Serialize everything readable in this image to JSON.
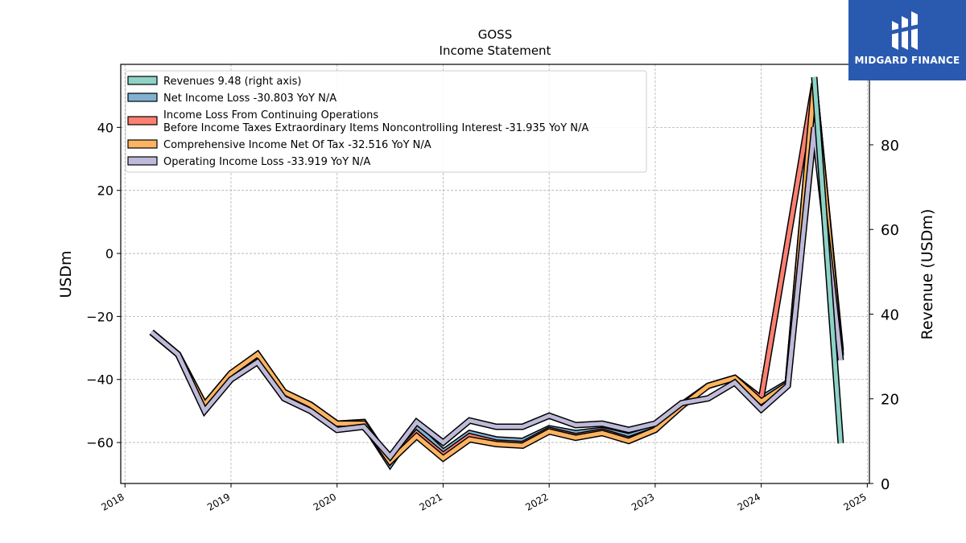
{
  "title": "GOSS",
  "subtitle": "Income Statement",
  "logo_text": "MIDGARD FINANCE",
  "chart_data": {
    "type": "line",
    "xlabel": "",
    "ylabel": "USDm",
    "ylabel_right": "Revenue (USDm)",
    "xlim": [
      2017.96,
      2025.02
    ],
    "ylim": [
      -73,
      60
    ],
    "ylim_right": [
      0,
      99
    ],
    "x_ticks": [
      "2018",
      "2019",
      "2020",
      "2021",
      "2022",
      "2023",
      "2024",
      "2025"
    ],
    "y_ticks": [
      -60,
      -40,
      -20,
      0,
      20,
      40
    ],
    "y_ticks_right": [
      0,
      20,
      40,
      60,
      80
    ],
    "grid": true,
    "legend_position": "top-left",
    "series": [
      {
        "name": "Revenues  9.48 (right axis)",
        "axis": "right",
        "color": "#8dd3c7",
        "x": [
          2024.5,
          2024.75
        ],
        "y": [
          96,
          9.48
        ]
      },
      {
        "name": "Net Income Loss  -30.803 YoY N/A",
        "color": "#80b1d3",
        "x": [
          2018.25,
          2018.5,
          2018.75,
          2019.0,
          2019.25,
          2019.5,
          2019.75,
          2020.0,
          2020.25,
          2020.5,
          2020.75,
          2021.0,
          2021.25,
          2021.5,
          2021.75,
          2022.0,
          2022.25,
          2022.5,
          2022.75,
          2023.0,
          2023.25,
          2023.5,
          2023.75,
          2024.0,
          2024.25,
          2024.5,
          2024.75
        ],
        "y": [
          -25,
          -32,
          -48,
          -38,
          -33,
          -44,
          -48,
          -54,
          -54,
          -67,
          -55,
          -63,
          -57,
          -59,
          -59.5,
          -55.5,
          -57,
          -56,
          -58,
          -55.5,
          -48,
          -42,
          -39.5,
          -46,
          -41,
          54,
          -30.8
        ]
      },
      {
        "name": "Income Loss From Continuing Operations\nBefore Income Taxes Extraordinary Items Noncontrolling Interest  -31.935 YoY N/A",
        "color": "#fb8072",
        "x": [
          2018.25,
          2018.5,
          2018.75,
          2019.0,
          2019.25,
          2019.5,
          2019.75,
          2020.0,
          2020.25,
          2020.5,
          2020.75,
          2021.0,
          2021.25,
          2021.5,
          2021.75,
          2022.0,
          2022.25,
          2022.5,
          2022.75,
          2023.0,
          2023.25,
          2023.5,
          2023.75,
          2024.0,
          2024.25,
          2024.5,
          2024.75
        ],
        "y": [
          -25,
          -32,
          -48,
          -38,
          -32,
          -44,
          -48,
          -54,
          -53.5,
          -66,
          -57,
          -64,
          -58,
          -60,
          -60.5,
          -56,
          -58,
          -56.5,
          -59,
          -56,
          -48,
          -42,
          -39.5,
          -46,
          4,
          54,
          -31.9
        ]
      },
      {
        "name": "Comprehensive Income Net Of Tax  -32.516 YoY N/A",
        "color": "#fdb462",
        "x": [
          2018.25,
          2018.5,
          2018.75,
          2019.0,
          2019.25,
          2019.5,
          2019.75,
          2020.0,
          2020.25,
          2020.5,
          2020.75,
          2021.0,
          2021.25,
          2021.5,
          2021.75,
          2022.0,
          2022.25,
          2022.5,
          2022.75,
          2023.0,
          2023.25,
          2023.5,
          2023.75,
          2024.0,
          2024.25,
          2024.5,
          2024.75
        ],
        "y": [
          -25,
          -32,
          -48,
          -38,
          -32,
          -44,
          -48,
          -54,
          -54,
          -66,
          -58,
          -65,
          -59,
          -60.5,
          -61,
          -56.5,
          -58.5,
          -57,
          -59.5,
          -56,
          -48.5,
          -42,
          -39.5,
          -47,
          -41.5,
          54,
          -32.5
        ]
      },
      {
        "name": "Operating Income Loss  -33.919 YoY N/A",
        "color": "#bebada",
        "x": [
          2018.25,
          2018.5,
          2018.75,
          2019.0,
          2019.25,
          2019.5,
          2019.75,
          2020.0,
          2020.25,
          2020.5,
          2020.75,
          2021.0,
          2021.25,
          2021.5,
          2021.75,
          2022.0,
          2022.25,
          2022.5,
          2022.75,
          2023.0,
          2023.25,
          2023.5,
          2023.75,
          2024.0,
          2024.25,
          2024.5,
          2024.75
        ],
        "y": [
          -25,
          -32,
          -50,
          -40,
          -34.5,
          -46,
          -50,
          -56,
          -55,
          -64.5,
          -53.5,
          -60,
          -53,
          -55,
          -55,
          -51.5,
          -54.5,
          -54,
          -56,
          -54,
          -47.5,
          -46,
          -41,
          -49.5,
          -42,
          40,
          -33.9
        ]
      }
    ]
  }
}
